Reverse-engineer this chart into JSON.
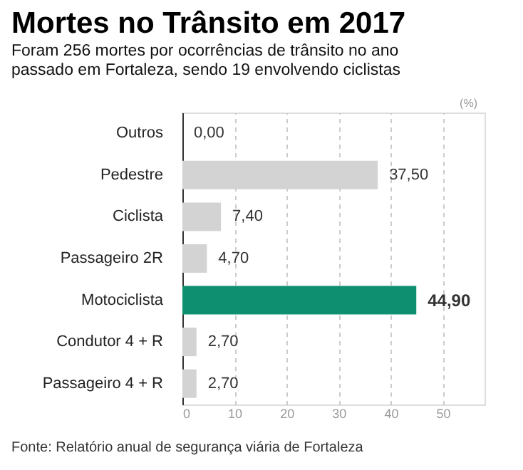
{
  "chart_data": {
    "type": "bar",
    "orientation": "horizontal",
    "title": "Mortes no Trânsito em 2017",
    "subtitle": "Foram 256 mortes por ocorrências de trânsito no ano passado em Fortaleza, sendo 19 envolvendo ciclistas",
    "xlabel": "(%)",
    "categories": [
      "Outros",
      "Pedestre",
      "Ciclista",
      "Passageiro 2R",
      "Motociclista",
      "Condutor 4 + R",
      "Passageiro 4 + R"
    ],
    "values": [
      0.0,
      37.5,
      7.4,
      4.7,
      44.9,
      2.7,
      2.7
    ],
    "value_labels": [
      "0,00",
      "37,50",
      "7,40",
      "4,70",
      "44,90",
      "2,70",
      "2,70"
    ],
    "colors": [
      "#d3d3d3",
      "#d3d3d3",
      "#d3d3d3",
      "#d3d3d3",
      "#0e8f6f",
      "#d3d3d3",
      "#d3d3d3"
    ],
    "xlim": [
      0,
      58
    ],
    "xticks": [
      0,
      10,
      20,
      30,
      40,
      50
    ],
    "grid": "x",
    "annotations": [
      "Fonte: Relatório anual de segurança viária de Fortaleza"
    ]
  }
}
